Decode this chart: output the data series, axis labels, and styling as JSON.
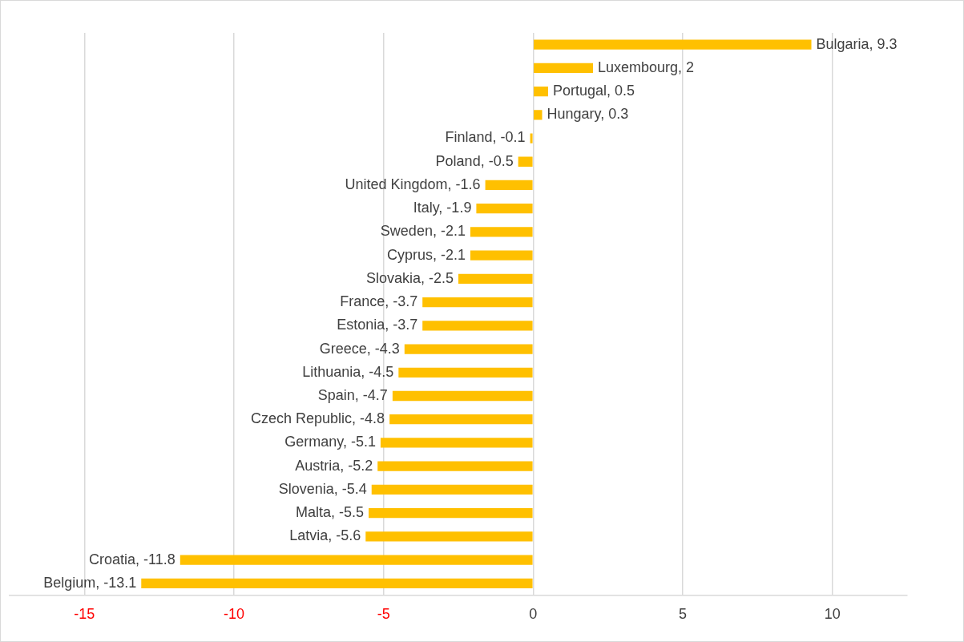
{
  "chart_data": {
    "type": "bar",
    "orientation": "horizontal",
    "categories": [
      null,
      null,
      null,
      null,
      null,
      null,
      null,
      null,
      null,
      null,
      null,
      null,
      null,
      null,
      null,
      null,
      null,
      null,
      null,
      null,
      null,
      null,
      null,
      null
    ],
    "value_labels": [
      "Bulgaria, 9.3",
      "Luxembourg, 2",
      "Portugal, 0.5",
      "Hungary, 0.3",
      "Finland, -0.1",
      "Poland, -0.5",
      "United Kingdom, -1.6",
      "Italy, -1.9",
      "Sweden, -2.1",
      "Cyprus, -2.1",
      "Slovakia, -2.5",
      "France, -3.7",
      "Estonia, -3.7",
      "Greece, -4.3",
      "Lithuania, -4.5",
      "Spain, -4.7",
      "Czech Republic, -4.8",
      "Germany, -5.1",
      "Austria, -5.2",
      "Slovenia, -5.4",
      "Malta, -5.5",
      "Latvia, -5.6",
      "Croatia, -11.8",
      "Belgium, -13.1"
    ],
    "values": [
      9.3,
      2,
      0.5,
      0.3,
      -0.1,
      -0.5,
      -1.6,
      -1.9,
      -2.1,
      -2.1,
      -2.5,
      -3.7,
      -3.7,
      -4.3,
      -4.5,
      -4.7,
      -4.8,
      -5.1,
      -5.2,
      -5.4,
      -5.5,
      -5.6,
      -11.8,
      -13.1
    ],
    "color": "#ffc000",
    "xlim": [
      -17.5,
      12.5
    ],
    "xticks": [
      -15,
      -10,
      -5,
      0,
      5,
      10
    ],
    "grid": "x",
    "legend": false
  }
}
